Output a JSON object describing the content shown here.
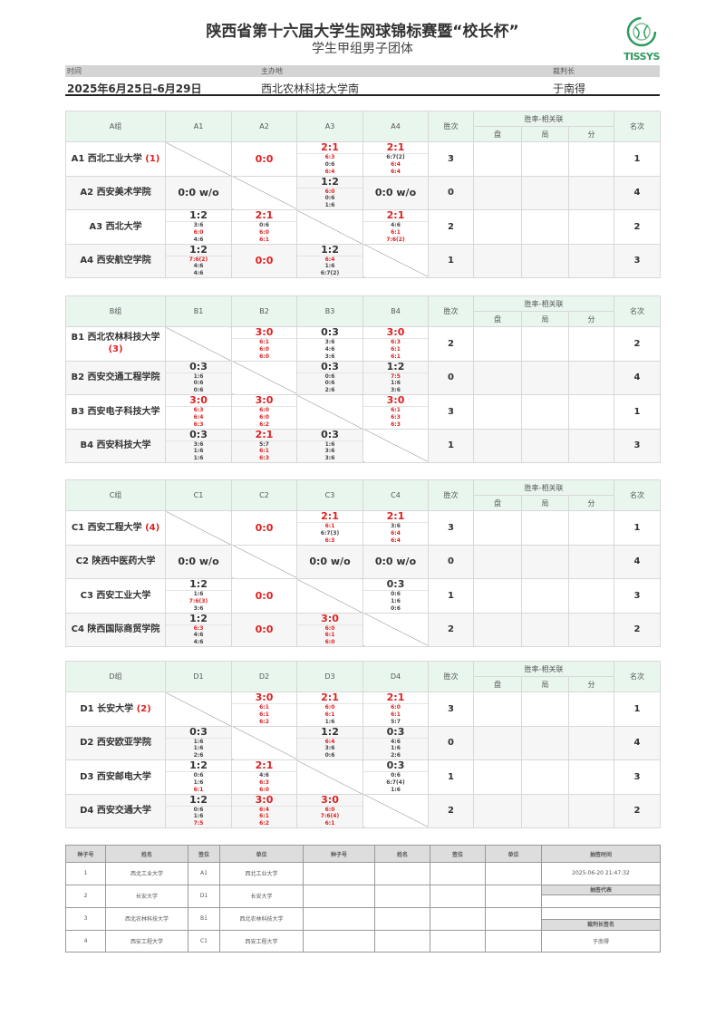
{
  "header": {
    "title": "陕西省第十六届大学生网球锦标赛暨“校长杯”",
    "subtitle": "学生甲组男子团体",
    "logo_text": "TISSYS",
    "time_label": "时间",
    "venue_label": "主办地",
    "referee_label": "裁判长",
    "time_value": "2025年6月25日-6月29日",
    "venue_value": "西北农林科技大学南",
    "referee_value": "于南得"
  },
  "colors": {
    "accent_red": "#dd2222",
    "header_green": "#e9f6ee",
    "logo_green": "#2e9a5e"
  },
  "col_labels": {
    "wins": "胜次",
    "tiebreak": "胜率-相关联",
    "sets": "盘",
    "games": "局",
    "points": "分",
    "rank": "名次"
  },
  "groups": [
    {
      "label": "A组",
      "cols": [
        "A1",
        "A2",
        "A3",
        "A4"
      ],
      "rows": [
        {
          "name": "A1 西北工业大学",
          "seed": "(1)",
          "wins": "3",
          "rank": "1",
          "cells": [
            null,
            {
              "plain": "0:0",
              "red": true
            },
            {
              "score": "2:1",
              "red": true,
              "sets": [
                [
                  "6:3",
                  true
                ],
                [
                  "0:6",
                  false
                ],
                [
                  "6:4",
                  true
                ]
              ]
            },
            {
              "score": "2:1",
              "red": true,
              "sets": [
                [
                  "6:7(2)",
                  false
                ],
                [
                  "6:4",
                  true
                ],
                [
                  "6:4",
                  true
                ]
              ]
            }
          ]
        },
        {
          "name": "A2 西安美术学院",
          "seed": "",
          "wins": "0",
          "rank": "4",
          "cells": [
            {
              "plain": "0:0 w/o",
              "red": false
            },
            null,
            {
              "score": "1:2",
              "red": false,
              "sets": [
                [
                  "6:0",
                  true
                ],
                [
                  "0:6",
                  false
                ],
                [
                  "1:6",
                  false
                ]
              ]
            },
            {
              "plain": "0:0 w/o",
              "red": false
            }
          ]
        },
        {
          "name": "A3 西北大学",
          "seed": "",
          "wins": "2",
          "rank": "2",
          "cells": [
            {
              "score": "1:2",
              "red": false,
              "sets": [
                [
                  "3:6",
                  false
                ],
                [
                  "6:0",
                  true
                ],
                [
                  "4:6",
                  false
                ]
              ]
            },
            {
              "score": "2:1",
              "red": true,
              "sets": [
                [
                  "0:6",
                  false
                ],
                [
                  "6:0",
                  true
                ],
                [
                  "6:1",
                  true
                ]
              ]
            },
            null,
            {
              "score": "2:1",
              "red": true,
              "sets": [
                [
                  "4:6",
                  false
                ],
                [
                  "6:1",
                  true
                ],
                [
                  "7:6(2)",
                  true
                ]
              ]
            }
          ]
        },
        {
          "name": "A4 西安航空学院",
          "seed": "",
          "wins": "1",
          "rank": "3",
          "cells": [
            {
              "score": "1:2",
              "red": false,
              "sets": [
                [
                  "7:6(2)",
                  true
                ],
                [
                  "4:6",
                  false
                ],
                [
                  "4:6",
                  false
                ]
              ]
            },
            {
              "plain": "0:0",
              "red": true
            },
            {
              "score": "1:2",
              "red": false,
              "sets": [
                [
                  "6:4",
                  true
                ],
                [
                  "1:6",
                  false
                ],
                [
                  "6:7(2)",
                  false
                ]
              ]
            },
            null
          ]
        }
      ]
    },
    {
      "label": "B组",
      "cols": [
        "B1",
        "B2",
        "B3",
        "B4"
      ],
      "rows": [
        {
          "name": "B1 西北农林科技大学",
          "seed": "(3)",
          "wins": "2",
          "rank": "2",
          "cells": [
            null,
            {
              "score": "3:0",
              "red": true,
              "sets": [
                [
                  "6:1",
                  true
                ],
                [
                  "6:0",
                  true
                ],
                [
                  "6:0",
                  true
                ]
              ]
            },
            {
              "score": "0:3",
              "red": false,
              "sets": [
                [
                  "3:6",
                  false
                ],
                [
                  "4:6",
                  false
                ],
                [
                  "3:6",
                  false
                ]
              ]
            },
            {
              "score": "3:0",
              "red": true,
              "sets": [
                [
                  "6:3",
                  true
                ],
                [
                  "6:1",
                  true
                ],
                [
                  "6:1",
                  true
                ]
              ]
            }
          ]
        },
        {
          "name": "B2 西安交通工程学院",
          "seed": "",
          "wins": "0",
          "rank": "4",
          "cells": [
            {
              "score": "0:3",
              "red": false,
              "sets": [
                [
                  "1:6",
                  false
                ],
                [
                  "0:6",
                  false
                ],
                [
                  "0:6",
                  false
                ]
              ]
            },
            null,
            {
              "score": "0:3",
              "red": false,
              "sets": [
                [
                  "0:6",
                  false
                ],
                [
                  "0:6",
                  false
                ],
                [
                  "2:6",
                  false
                ]
              ]
            },
            {
              "score": "1:2",
              "red": false,
              "sets": [
                [
                  "7:5",
                  true
                ],
                [
                  "1:6",
                  false
                ],
                [
                  "3:6",
                  false
                ]
              ]
            }
          ]
        },
        {
          "name": "B3 西安电子科技大学",
          "seed": "",
          "wins": "3",
          "rank": "1",
          "cells": [
            {
              "score": "3:0",
              "red": true,
              "sets": [
                [
                  "6:3",
                  true
                ],
                [
                  "6:4",
                  true
                ],
                [
                  "6:3",
                  true
                ]
              ]
            },
            {
              "score": "3:0",
              "red": true,
              "sets": [
                [
                  "6:0",
                  true
                ],
                [
                  "6:0",
                  true
                ],
                [
                  "6:2",
                  true
                ]
              ]
            },
            null,
            {
              "score": "3:0",
              "red": true,
              "sets": [
                [
                  "6:1",
                  true
                ],
                [
                  "6:3",
                  true
                ],
                [
                  "6:3",
                  true
                ]
              ]
            }
          ]
        },
        {
          "name": "B4 西安科技大学",
          "seed": "",
          "wins": "1",
          "rank": "3",
          "cells": [
            {
              "score": "0:3",
              "red": false,
              "sets": [
                [
                  "3:6",
                  false
                ],
                [
                  "1:6",
                  false
                ],
                [
                  "1:6",
                  false
                ]
              ]
            },
            {
              "score": "2:1",
              "red": true,
              "sets": [
                [
                  "5:7",
                  false
                ],
                [
                  "6:1",
                  true
                ],
                [
                  "6:3",
                  true
                ]
              ]
            },
            {
              "score": "0:3",
              "red": false,
              "sets": [
                [
                  "1:6",
                  false
                ],
                [
                  "3:6",
                  false
                ],
                [
                  "3:6",
                  false
                ]
              ]
            },
            null
          ]
        }
      ]
    },
    {
      "label": "C组",
      "cols": [
        "C1",
        "C2",
        "C3",
        "C4"
      ],
      "rows": [
        {
          "name": "C1 西安工程大学",
          "seed": "(4)",
          "wins": "3",
          "rank": "1",
          "cells": [
            null,
            {
              "plain": "0:0",
              "red": true
            },
            {
              "score": "2:1",
              "red": true,
              "sets": [
                [
                  "6:1",
                  true
                ],
                [
                  "6:7(3)",
                  false
                ],
                [
                  "6:3",
                  true
                ]
              ]
            },
            {
              "score": "2:1",
              "red": true,
              "sets": [
                [
                  "3:6",
                  false
                ],
                [
                  "6:4",
                  true
                ],
                [
                  "6:4",
                  true
                ]
              ]
            }
          ]
        },
        {
          "name": "C2 陕西中医药大学",
          "seed": "",
          "wins": "0",
          "rank": "4",
          "cells": [
            {
              "plain": "0:0 w/o",
              "red": false
            },
            null,
            {
              "plain": "0:0 w/o",
              "red": false
            },
            {
              "plain": "0:0 w/o",
              "red": false
            }
          ]
        },
        {
          "name": "C3 西安工业大学",
          "seed": "",
          "wins": "1",
          "rank": "3",
          "cells": [
            {
              "score": "1:2",
              "red": false,
              "sets": [
                [
                  "1:6",
                  false
                ],
                [
                  "7:6(3)",
                  true
                ],
                [
                  "3:6",
                  false
                ]
              ]
            },
            {
              "plain": "0:0",
              "red": true
            },
            null,
            {
              "score": "0:3",
              "red": false,
              "sets": [
                [
                  "0:6",
                  false
                ],
                [
                  "1:6",
                  false
                ],
                [
                  "0:6",
                  false
                ]
              ]
            }
          ]
        },
        {
          "name": "C4 陕西国际商贸学院",
          "seed": "",
          "wins": "2",
          "rank": "2",
          "cells": [
            {
              "score": "1:2",
              "red": false,
              "sets": [
                [
                  "6:3",
                  true
                ],
                [
                  "4:6",
                  false
                ],
                [
                  "4:6",
                  false
                ]
              ]
            },
            {
              "plain": "0:0",
              "red": true
            },
            {
              "score": "3:0",
              "red": true,
              "sets": [
                [
                  "6:0",
                  true
                ],
                [
                  "6:1",
                  true
                ],
                [
                  "6:0",
                  true
                ]
              ]
            },
            null
          ]
        }
      ]
    },
    {
      "label": "D组",
      "cols": [
        "D1",
        "D2",
        "D3",
        "D4"
      ],
      "rows": [
        {
          "name": "D1 长安大学",
          "seed": "(2)",
          "wins": "3",
          "rank": "1",
          "cells": [
            null,
            {
              "score": "3:0",
              "red": true,
              "sets": [
                [
                  "6:1",
                  true
                ],
                [
                  "6:1",
                  true
                ],
                [
                  "6:2",
                  true
                ]
              ]
            },
            {
              "score": "2:1",
              "red": true,
              "sets": [
                [
                  "6:0",
                  true
                ],
                [
                  "6:1",
                  true
                ],
                [
                  "1:6",
                  false
                ]
              ]
            },
            {
              "score": "2:1",
              "red": true,
              "sets": [
                [
                  "6:0",
                  true
                ],
                [
                  "6:1",
                  true
                ],
                [
                  "5:7",
                  false
                ]
              ]
            }
          ]
        },
        {
          "name": "D2 西安欧亚学院",
          "seed": "",
          "wins": "0",
          "rank": "4",
          "cells": [
            {
              "score": "0:3",
              "red": false,
              "sets": [
                [
                  "1:6",
                  false
                ],
                [
                  "1:6",
                  false
                ],
                [
                  "2:6",
                  false
                ]
              ]
            },
            null,
            {
              "score": "1:2",
              "red": false,
              "sets": [
                [
                  "6:4",
                  true
                ],
                [
                  "3:6",
                  false
                ],
                [
                  "0:6",
                  false
                ]
              ]
            },
            {
              "score": "0:3",
              "red": false,
              "sets": [
                [
                  "4:6",
                  false
                ],
                [
                  "1:6",
                  false
                ],
                [
                  "2:6",
                  false
                ]
              ]
            }
          ]
        },
        {
          "name": "D3 西安邮电大学",
          "seed": "",
          "wins": "1",
          "rank": "3",
          "cells": [
            {
              "score": "1:2",
              "red": false,
              "sets": [
                [
                  "0:6",
                  false
                ],
                [
                  "1:6",
                  false
                ],
                [
                  "6:1",
                  true
                ]
              ]
            },
            {
              "score": "2:1",
              "red": true,
              "sets": [
                [
                  "4:6",
                  false
                ],
                [
                  "6:3",
                  true
                ],
                [
                  "6:0",
                  true
                ]
              ]
            },
            null,
            {
              "score": "0:3",
              "red": false,
              "sets": [
                [
                  "0:6",
                  false
                ],
                [
                  "6:7(4)",
                  false
                ],
                [
                  "1:6",
                  false
                ]
              ]
            }
          ]
        },
        {
          "name": "D4 西安交通大学",
          "seed": "",
          "wins": "2",
          "rank": "2",
          "cells": [
            {
              "score": "1:2",
              "red": false,
              "sets": [
                [
                  "0:6",
                  false
                ],
                [
                  "1:6",
                  false
                ],
                [
                  "7:5",
                  true
                ]
              ]
            },
            {
              "score": "3:0",
              "red": true,
              "sets": [
                [
                  "6:4",
                  true
                ],
                [
                  "6:1",
                  true
                ],
                [
                  "6:2",
                  true
                ]
              ]
            },
            {
              "score": "3:0",
              "red": true,
              "sets": [
                [
                  "6:0",
                  true
                ],
                [
                  "7:6(4)",
                  true
                ],
                [
                  "6:1",
                  true
                ]
              ]
            },
            null
          ]
        }
      ]
    }
  ],
  "draw": {
    "headers": [
      "种子号",
      "姓名",
      "签位",
      "单位",
      "种子号",
      "姓名",
      "签位",
      "单位"
    ],
    "rows": [
      [
        "1",
        "西北工业大学",
        "A1",
        "西北工业大学"
      ],
      [
        "2",
        "长安大学",
        "D1",
        "长安大学"
      ],
      [
        "3",
        "西北农林科技大学",
        "B1",
        "西北农林科技大学"
      ],
      [
        "4",
        "西安工程大学",
        "C1",
        "西安工程大学"
      ]
    ],
    "draw_time_label": "抽签时间",
    "draw_time_value": "2025-06-20 21:47:32",
    "draw_rep_label": "抽签代表",
    "draw_rep_value": "",
    "referee_sign_label": "裁判长签名",
    "referee_sign_value": "于南得"
  }
}
